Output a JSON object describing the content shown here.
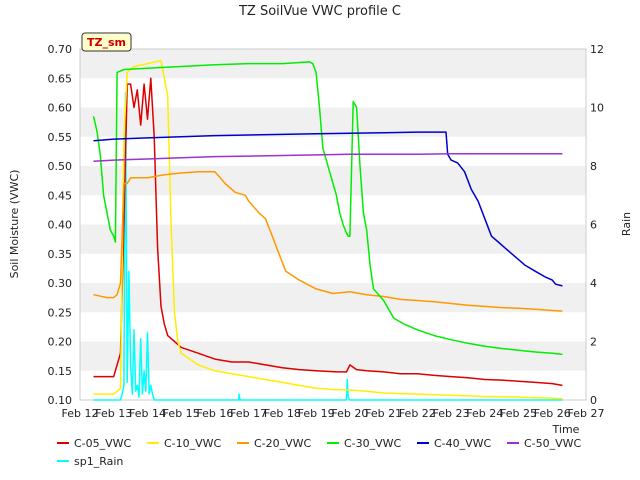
{
  "chart_data": {
    "type": "line",
    "title": "TZ SoilVue VWC profile C",
    "xlabel": "Time",
    "ylabel": "Soil Moisture (VWC)",
    "y2label": "Rain",
    "badge": "TZ_sm",
    "grid": "horizontal bands",
    "legend_position": "bottom",
    "ylim": [
      0.1,
      0.7
    ],
    "y2lim": [
      0,
      12
    ],
    "xlim": [
      12,
      27
    ],
    "x_ticks": [
      "Feb 12",
      "Feb 13",
      "Feb 14",
      "Feb 15",
      "Feb 16",
      "Feb 17",
      "Feb 18",
      "Feb 19",
      "Feb 20",
      "Feb 21",
      "Feb 22",
      "Feb 23",
      "Feb 24",
      "Feb 25",
      "Feb 26",
      "Feb 27"
    ],
    "y_ticks": [
      "0.10",
      "0.15",
      "0.20",
      "0.25",
      "0.30",
      "0.35",
      "0.40",
      "0.45",
      "0.50",
      "0.55",
      "0.60",
      "0.65",
      "0.70"
    ],
    "y2_ticks": [
      "0",
      "2",
      "4",
      "6",
      "8",
      "10",
      "12"
    ],
    "series": [
      {
        "name": "C-05_VWC",
        "color": "#dd0000",
        "axis": "left",
        "x": [
          12.4,
          12.8,
          13.0,
          13.1,
          13.2,
          13.3,
          13.4,
          13.5,
          13.6,
          13.7,
          13.8,
          13.9,
          14.0,
          14.1,
          14.2,
          14.3,
          14.4,
          14.5,
          14.6,
          14.8,
          15.0,
          15.5,
          16.0,
          16.5,
          17.0,
          17.5,
          18.0,
          18.5,
          19.0,
          19.6,
          19.9,
          20.0,
          20.2,
          20.5,
          21.0,
          21.5,
          22.0,
          22.5,
          23.0,
          23.5,
          24.0,
          24.5,
          25.0,
          25.5,
          26.0,
          26.3
        ],
        "y": [
          0.14,
          0.14,
          0.14,
          0.16,
          0.18,
          0.4,
          0.64,
          0.64,
          0.6,
          0.63,
          0.57,
          0.64,
          0.58,
          0.65,
          0.55,
          0.36,
          0.26,
          0.23,
          0.21,
          0.2,
          0.19,
          0.18,
          0.17,
          0.165,
          0.165,
          0.16,
          0.155,
          0.152,
          0.15,
          0.148,
          0.148,
          0.16,
          0.152,
          0.15,
          0.148,
          0.145,
          0.145,
          0.142,
          0.14,
          0.138,
          0.135,
          0.134,
          0.132,
          0.13,
          0.128,
          0.125
        ]
      },
      {
        "name": "C-10_VWC",
        "color": "#ffee00",
        "axis": "left",
        "x": [
          12.4,
          12.8,
          13.0,
          13.2,
          13.3,
          13.4,
          13.6,
          14.0,
          14.4,
          14.6,
          14.7,
          14.8,
          14.9,
          15.0,
          15.5,
          16.0,
          16.5,
          17.0,
          17.5,
          18.0,
          18.5,
          19.0,
          19.5,
          20.0,
          20.5,
          21.0,
          22.0,
          23.0,
          24.0,
          25.0,
          26.0,
          26.3
        ],
        "y": [
          0.11,
          0.11,
          0.11,
          0.12,
          0.55,
          0.66,
          0.67,
          0.675,
          0.68,
          0.62,
          0.4,
          0.25,
          0.2,
          0.18,
          0.16,
          0.15,
          0.145,
          0.14,
          0.135,
          0.13,
          0.125,
          0.12,
          0.118,
          0.117,
          0.115,
          0.112,
          0.11,
          0.108,
          0.106,
          0.105,
          0.103,
          0.102
        ]
      },
      {
        "name": "C-20_VWC",
        "color": "#ff9900",
        "axis": "left",
        "x": [
          12.4,
          12.8,
          13.0,
          13.1,
          13.2,
          13.3,
          13.4,
          13.5,
          14.0,
          14.5,
          15.0,
          15.5,
          16.0,
          16.3,
          16.6,
          16.9,
          17.0,
          17.3,
          17.5,
          17.7,
          17.9,
          18.1,
          18.5,
          19.0,
          19.5,
          20.0,
          20.5,
          21.0,
          21.5,
          22.0,
          22.5,
          23.0,
          23.5,
          24.0,
          24.5,
          25.0,
          25.5,
          26.0,
          26.3
        ],
        "y": [
          0.28,
          0.275,
          0.275,
          0.28,
          0.3,
          0.47,
          0.47,
          0.48,
          0.48,
          0.485,
          0.488,
          0.49,
          0.49,
          0.47,
          0.455,
          0.45,
          0.44,
          0.42,
          0.41,
          0.38,
          0.35,
          0.32,
          0.305,
          0.29,
          0.282,
          0.285,
          0.28,
          0.277,
          0.272,
          0.27,
          0.268,
          0.265,
          0.262,
          0.26,
          0.258,
          0.257,
          0.255,
          0.253,
          0.252
        ]
      },
      {
        "name": "C-30_VWC",
        "color": "#00ee00",
        "axis": "left",
        "x": [
          12.4,
          12.5,
          12.6,
          12.7,
          12.8,
          12.9,
          13.0,
          13.05,
          13.1,
          13.3,
          14.0,
          15.0,
          16.0,
          17.0,
          18.0,
          18.8,
          18.9,
          19.0,
          19.1,
          19.2,
          19.3,
          19.4,
          19.5,
          19.6,
          19.7,
          19.8,
          19.9,
          19.95,
          20.0,
          20.1,
          20.2,
          20.3,
          20.4,
          20.5,
          20.6,
          20.7,
          21.0,
          21.3,
          21.6,
          22.0,
          22.5,
          23.0,
          23.5,
          24.0,
          24.5,
          25.0,
          25.5,
          26.0,
          26.3
        ],
        "y": [
          0.585,
          0.56,
          0.52,
          0.45,
          0.42,
          0.39,
          0.38,
          0.37,
          0.66,
          0.665,
          0.667,
          0.67,
          0.673,
          0.675,
          0.675,
          0.678,
          0.675,
          0.66,
          0.6,
          0.53,
          0.51,
          0.49,
          0.47,
          0.45,
          0.42,
          0.4,
          0.385,
          0.38,
          0.38,
          0.61,
          0.6,
          0.5,
          0.42,
          0.39,
          0.33,
          0.29,
          0.27,
          0.24,
          0.23,
          0.22,
          0.21,
          0.203,
          0.197,
          0.192,
          0.188,
          0.185,
          0.182,
          0.18,
          0.178
        ]
      },
      {
        "name": "C-40_VWC",
        "color": "#0000cc",
        "axis": "left",
        "x": [
          12.4,
          13.0,
          14.0,
          15.0,
          16.0,
          17.0,
          18.0,
          19.0,
          20.0,
          21.0,
          22.0,
          22.85,
          22.9,
          23.0,
          23.2,
          23.4,
          23.6,
          23.8,
          24.0,
          24.2,
          24.4,
          24.6,
          24.8,
          25.0,
          25.2,
          25.5,
          25.8,
          26.0,
          26.1,
          26.3
        ],
        "y": [
          0.543,
          0.546,
          0.548,
          0.55,
          0.552,
          0.553,
          0.554,
          0.555,
          0.556,
          0.557,
          0.558,
          0.558,
          0.52,
          0.51,
          0.505,
          0.49,
          0.46,
          0.44,
          0.41,
          0.38,
          0.37,
          0.36,
          0.35,
          0.34,
          0.33,
          0.32,
          0.31,
          0.305,
          0.298,
          0.295
        ]
      },
      {
        "name": "C-50_VWC",
        "color": "#9933cc",
        "axis": "left",
        "x": [
          12.4,
          13.0,
          14.0,
          15.0,
          16.0,
          17.0,
          18.0,
          19.0,
          20.0,
          21.0,
          22.0,
          23.0,
          24.0,
          25.0,
          26.0,
          26.3
        ],
        "y": [
          0.508,
          0.51,
          0.512,
          0.514,
          0.516,
          0.517,
          0.518,
          0.519,
          0.52,
          0.52,
          0.52,
          0.521,
          0.521,
          0.521,
          0.521,
          0.521
        ]
      },
      {
        "name": "sp1_Rain",
        "color": "#00ffff",
        "axis": "right",
        "x": [
          12.4,
          13.2,
          13.25,
          13.3,
          13.35,
          13.4,
          13.45,
          13.5,
          13.55,
          13.6,
          13.65,
          13.7,
          13.75,
          13.8,
          13.85,
          13.9,
          13.95,
          14.0,
          14.05,
          14.1,
          14.15,
          14.2,
          14.25,
          14.3,
          14.35,
          14.4,
          14.5,
          14.6,
          14.7,
          14.8,
          14.9,
          15.0,
          16.0,
          16.7,
          16.72,
          16.74,
          17.0,
          19.0,
          19.9,
          19.92,
          19.95,
          20.0,
          21.0,
          22.0,
          23.0,
          24.0,
          25.0,
          26.0,
          26.3
        ],
        "y": [
          0,
          0,
          0.2,
          0.5,
          10.5,
          0.6,
          4.4,
          1.2,
          0.2,
          2.4,
          0.3,
          0.5,
          0.1,
          2.1,
          0.2,
          1.0,
          0.3,
          2.3,
          0.2,
          0.5,
          0.2,
          0,
          0,
          0,
          0,
          0,
          0,
          0,
          0,
          0,
          0,
          0,
          0,
          0,
          0.2,
          0,
          0,
          0,
          0,
          0.7,
          0.1,
          0,
          0,
          0,
          0,
          0,
          0,
          0,
          0
        ]
      }
    ]
  }
}
